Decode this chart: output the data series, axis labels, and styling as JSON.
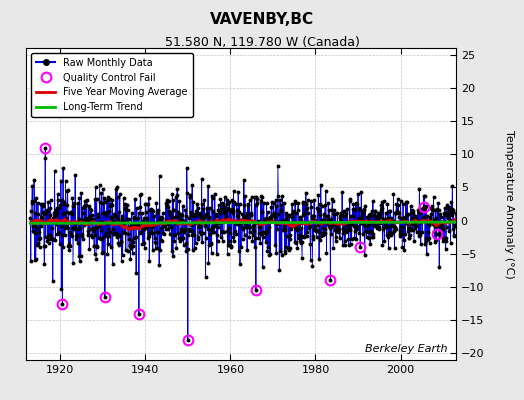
{
  "title": "VAVENBY,BC",
  "subtitle": "51.580 N, 119.780 W (Canada)",
  "ylabel": "Temperature Anomaly (°C)",
  "ylim": [
    -21,
    26
  ],
  "yticks": [
    -20,
    -15,
    -10,
    -5,
    0,
    5,
    10,
    15,
    20,
    25
  ],
  "xlim": [
    1912,
    2013
  ],
  "xticks": [
    1920,
    1940,
    1960,
    1980,
    2000
  ],
  "background_color": "#e8e8e8",
  "plot_bg_color": "#ffffff",
  "line_color": "#0000dd",
  "marker_color": "#000000",
  "moving_avg_color": "#dd0000",
  "trend_color": "#00bb00",
  "qc_fail_color": "#ff00ff",
  "watermark": "Berkeley Earth",
  "seed": 17,
  "start_year": 1913,
  "end_year": 2012,
  "qc_years": [
    1916.5,
    1920.5,
    1930.5,
    1938.5,
    1950.0,
    1966.0,
    1983.5,
    1990.5,
    2005.5,
    2008.5
  ],
  "qc_values": [
    11.0,
    -12.5,
    -11.5,
    -14.0,
    -18.0,
    -10.5,
    -9.0,
    -4.0,
    2.0,
    -2.0
  ]
}
